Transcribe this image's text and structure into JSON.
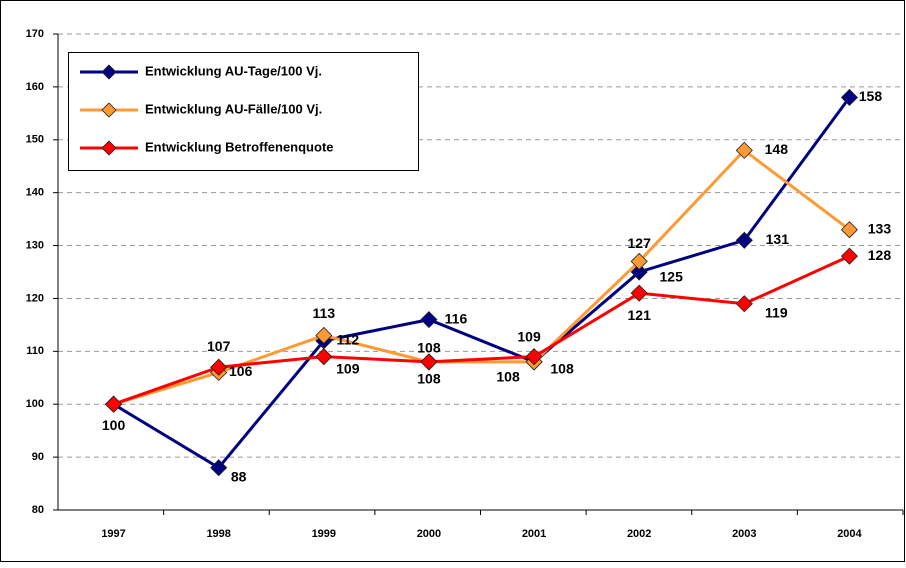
{
  "chart_data": {
    "type": "line",
    "categories": [
      "1997",
      "1998",
      "1999",
      "2000",
      "2001",
      "2002",
      "2003",
      "2004"
    ],
    "series": [
      {
        "name": "Entwicklung AU-Tage/100 Vj.",
        "color": "#000080",
        "values": [
          100,
          88,
          112,
          116,
          108,
          125,
          131,
          158
        ]
      },
      {
        "name": "Entwicklung AU-Fälle/100 Vj.",
        "color": "#ff9933",
        "values": [
          100,
          106,
          113,
          108,
          108,
          127,
          148,
          133
        ]
      },
      {
        "name": "Entwicklung Betroffenenquote",
        "color": "#ff0000",
        "values": [
          100,
          107,
          109,
          108,
          109,
          121,
          119,
          128
        ]
      }
    ],
    "ylim": [
      80,
      170
    ],
    "yticks": [
      80,
      90,
      100,
      110,
      120,
      130,
      140,
      150,
      160,
      170
    ],
    "grid": true,
    "legend": "upper left"
  }
}
